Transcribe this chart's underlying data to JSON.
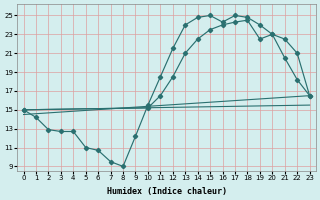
{
  "xlabel": "Humidex (Indice chaleur)",
  "bg_color": "#d4eeee",
  "grid_color": "#dda0a0",
  "line_color": "#2a7070",
  "xlim": [
    -0.5,
    23.5
  ],
  "ylim": [
    8.5,
    26.2
  ],
  "xticks": [
    0,
    1,
    2,
    3,
    4,
    5,
    6,
    7,
    8,
    9,
    10,
    11,
    12,
    13,
    14,
    15,
    16,
    17,
    18,
    19,
    20,
    21,
    22,
    23
  ],
  "yticks": [
    9,
    11,
    13,
    15,
    17,
    19,
    21,
    23,
    25
  ],
  "curve1_x": [
    0,
    1,
    2,
    3,
    4,
    5,
    6,
    7,
    8,
    9,
    10,
    11,
    12,
    13,
    14,
    15,
    16,
    17,
    18,
    19,
    20,
    21,
    22,
    23
  ],
  "curve1_y": [
    15.0,
    14.2,
    12.9,
    12.7,
    12.7,
    11.0,
    10.7,
    9.5,
    9.0,
    12.2,
    15.5,
    18.5,
    21.5,
    24.0,
    24.8,
    25.0,
    24.3,
    25.0,
    24.8,
    24.0,
    23.0,
    20.5,
    18.2,
    16.5
  ],
  "curve2_x": [
    0,
    10,
    11,
    12,
    13,
    14,
    15,
    16,
    17,
    18,
    19,
    20,
    21,
    22,
    23
  ],
  "curve2_y": [
    15.0,
    15.2,
    16.5,
    18.5,
    21.0,
    22.5,
    23.5,
    24.0,
    24.3,
    24.5,
    22.5,
    23.0,
    22.5,
    21.0,
    16.5
  ],
  "line3_x": [
    0,
    23
  ],
  "line3_y": [
    15.0,
    15.5
  ],
  "line4_x": [
    0,
    23
  ],
  "line4_y": [
    14.5,
    16.5
  ]
}
